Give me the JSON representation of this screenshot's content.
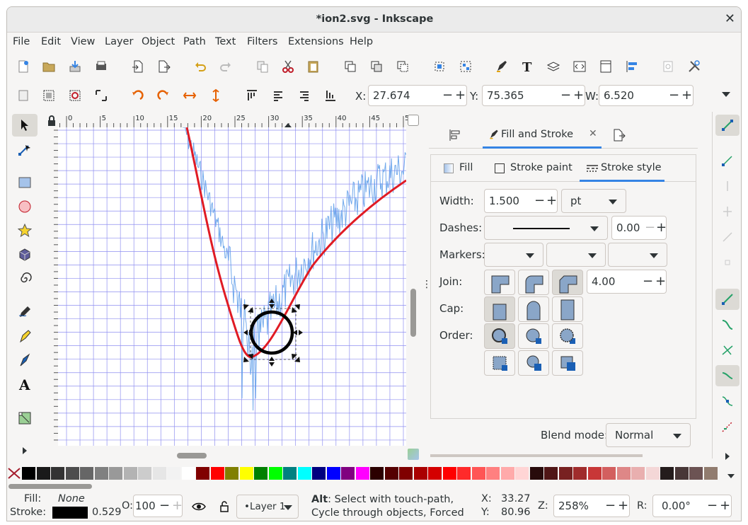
{
  "window": {
    "title": "*ion2.svg - Inkscape",
    "close": "✕"
  },
  "menu": [
    "File",
    "Edit",
    "View",
    "Layer",
    "Object",
    "Path",
    "Text",
    "Filters",
    "Extensions",
    "Help"
  ],
  "coords": {
    "x_label": "X:",
    "x": "27.674",
    "y_label": "Y:",
    "y": "75.365",
    "w_label": "W:",
    "w": "6.520"
  },
  "ruler": {
    "h_ticks": [
      "0",
      "5",
      "10",
      "15",
      "20",
      "25",
      "30",
      "35",
      "40",
      "45",
      "50"
    ]
  },
  "panel": {
    "tabs": [
      {
        "label": "Fill and Stroke",
        "close": "✕"
      }
    ],
    "subtabs": {
      "fill": "Fill",
      "stroke_paint": "Stroke paint",
      "stroke_style": "Stroke style"
    },
    "width_label": "Width:",
    "width": "1.500",
    "unit": "pt",
    "dashes_label": "Dashes:",
    "dash_offset": "0.00",
    "markers_label": "Markers:",
    "join_label": "Join:",
    "miter": "4.00",
    "cap_label": "Cap:",
    "order_label": "Order:",
    "blend_label": "Blend mode:",
    "blend": "Normal"
  },
  "status": {
    "fill_label": "Fill:",
    "fill_value": "None",
    "stroke_label": "Stroke:",
    "stroke_width": "0.529",
    "opacity_label": "O:",
    "opacity": "100",
    "layer": "•Layer 1",
    "message_bold": "Alt",
    "message": ": Select with touch-path, Cycle through objects, Forced Drag",
    "cx_label": "X:",
    "cx": "33.27",
    "cy_label": "Y:",
    "cy": "80.96",
    "zoom_label": "Z:",
    "zoom": "258%",
    "rot_label": "R:",
    "rot": "0.00°"
  },
  "colors": {
    "accent": "#3584e4",
    "curve_red": "#e01b24",
    "noise_blue": "#62a0ea"
  },
  "palette": [
    "#000000",
    "#1a1a1a",
    "#333333",
    "#4d4d4d",
    "#666666",
    "#808080",
    "#999999",
    "#b3b3b3",
    "#cccccc",
    "#e6e6e6",
    "#f2f2f2",
    "#ffffff",
    "#800000",
    "#ff0000",
    "#808000",
    "#ffff00",
    "#008000",
    "#00ff00",
    "#008080",
    "#00ffff",
    "#000080",
    "#0000ff",
    "#800080",
    "#ff00ff",
    "#2b0000",
    "#550000",
    "#800000",
    "#aa0000",
    "#d40000",
    "#ff0000",
    "#ff2a2a",
    "#ff5555",
    "#ff8080",
    "#ffaaaa",
    "#ffd5d5",
    "#280b0b",
    "#501616",
    "#782121",
    "#a02c2c",
    "#c83737",
    "#d35f5f",
    "#de8787",
    "#e9afaf",
    "#f4d7d7",
    "#241c1c",
    "#483737",
    "#6c5353",
    "#917c6f"
  ]
}
